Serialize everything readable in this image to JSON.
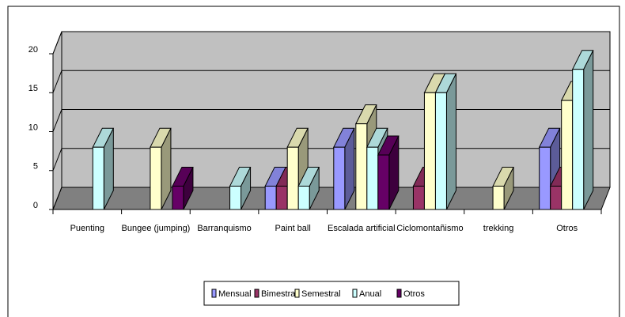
{
  "chart_data": {
    "type": "bar3d",
    "categories": [
      "Puenting",
      "Bungee (jumping)",
      "Barranquismo",
      "Paint ball",
      "Escalada artificial",
      "Ciclomontañismo",
      "trekking",
      "Otros"
    ],
    "series": [
      {
        "name": "Mensual",
        "color": "#9999ff",
        "values": [
          0,
          0,
          0,
          3,
          8,
          0,
          0,
          8
        ]
      },
      {
        "name": "Bimestral",
        "color": "#993366",
        "values": [
          0,
          0,
          0,
          3,
          0,
          3,
          0,
          3
        ]
      },
      {
        "name": "Semestral",
        "color": "#ffffcc",
        "values": [
          0,
          8,
          0,
          8,
          11,
          15,
          3,
          14
        ]
      },
      {
        "name": "Anual",
        "color": "#ccffff",
        "values": [
          8,
          0,
          3,
          3,
          8,
          15,
          0,
          18
        ]
      },
      {
        "name": "Otros",
        "color": "#660066",
        "values": [
          0,
          3,
          0,
          0,
          7,
          0,
          0,
          0
        ]
      }
    ],
    "ylim": [
      0,
      20
    ],
    "yticks": [
      0,
      5,
      10,
      15,
      20
    ],
    "grid": true,
    "legend": "bottom"
  }
}
